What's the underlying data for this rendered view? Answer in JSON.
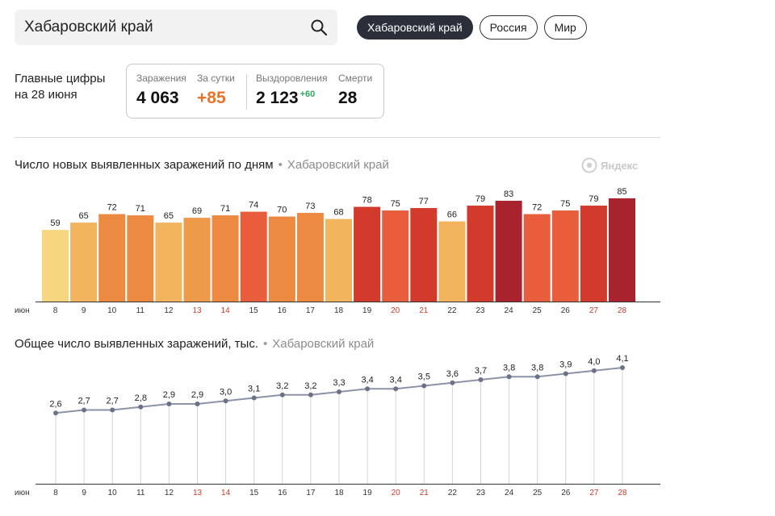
{
  "search": {
    "value": "Хабаровский край",
    "icon": "search-icon"
  },
  "region_tabs": [
    {
      "label": "Хабаровский край",
      "active": true
    },
    {
      "label": "Россия",
      "active": false
    },
    {
      "label": "Мир",
      "active": false
    }
  ],
  "summary": {
    "title_line1": "Главные цифры",
    "title_line2": "на 28 июня",
    "infected_label": "Заражения",
    "infected_value": "4 063",
    "day_label": "За сутки",
    "day_value": "+85",
    "recovered_label": "Выздоровления",
    "recovered_value": "2 123",
    "recovered_delta": "+60",
    "deaths_label": "Смерти",
    "deaths_value": "28"
  },
  "logo": {
    "text": "Яндекс"
  },
  "colors": {
    "accent": "#e8742c",
    "green": "#2ea55f",
    "tab_active": "#2b2f3a",
    "weekend": "#d23b2b"
  },
  "chart_data": [
    {
      "type": "bar",
      "title": "Число новых выявленных заражений по дням",
      "region": "Хабаровский край",
      "month_label": "июн",
      "categories": [
        "8",
        "9",
        "10",
        "11",
        "12",
        "13",
        "14",
        "15",
        "16",
        "17",
        "18",
        "19",
        "20",
        "21",
        "22",
        "23",
        "24",
        "25",
        "26",
        "27",
        "28"
      ],
      "weekend_days": [
        "13",
        "14",
        "20",
        "21",
        "27",
        "28"
      ],
      "values": [
        59,
        65,
        72,
        71,
        65,
        69,
        71,
        74,
        70,
        73,
        68,
        78,
        75,
        77,
        66,
        79,
        83,
        72,
        75,
        79,
        85
      ],
      "ylim": [
        0,
        85
      ],
      "colors": [
        "#f6d67f",
        "#f2b55d",
        "#ec8a42",
        "#ec8a42",
        "#f2b55d",
        "#ee9a4b",
        "#ec8a42",
        "#e85e3c",
        "#ec8a42",
        "#ec8a42",
        "#f2b55d",
        "#d23b2b",
        "#e85e3c",
        "#d23b2b",
        "#f2b55d",
        "#d23b2b",
        "#a8232e",
        "#e85e3c",
        "#e85e3c",
        "#d23b2b",
        "#a8232e"
      ]
    },
    {
      "type": "line",
      "title": "Общее число выявленных заражений, тыс.",
      "region": "Хабаровский край",
      "month_label": "июн",
      "categories": [
        "8",
        "9",
        "10",
        "11",
        "12",
        "13",
        "14",
        "15",
        "16",
        "17",
        "18",
        "19",
        "20",
        "21",
        "22",
        "23",
        "24",
        "25",
        "26",
        "27",
        "28"
      ],
      "weekend_days": [
        "13",
        "14",
        "20",
        "21",
        "27",
        "28"
      ],
      "values": [
        2.6,
        2.7,
        2.7,
        2.8,
        2.9,
        2.9,
        3.0,
        3.1,
        3.2,
        3.2,
        3.3,
        3.4,
        3.4,
        3.5,
        3.6,
        3.7,
        3.8,
        3.8,
        3.9,
        4.0,
        4.1
      ],
      "labels": [
        "2,6",
        "2,7",
        "2,7",
        "2,8",
        "2,9",
        "2,9",
        "3,0",
        "3,1",
        "3,2",
        "3,2",
        "3,3",
        "3,4",
        "3,4",
        "3,5",
        "3,6",
        "3,7",
        "3,8",
        "3,8",
        "3,9",
        "4,0",
        "4,1"
      ],
      "ylim": [
        0,
        4.1
      ]
    }
  ]
}
